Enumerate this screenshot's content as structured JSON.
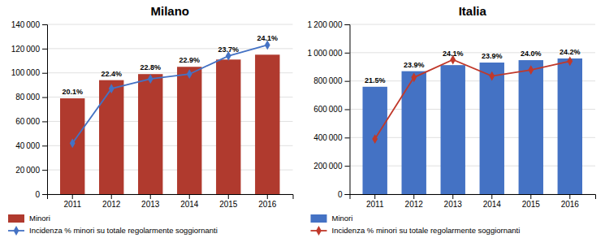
{
  "chart_data": [
    {
      "type": "bar",
      "title": "Milano",
      "categories": [
        "2011",
        "2012",
        "2013",
        "2014",
        "2015",
        "2016"
      ],
      "series": [
        {
          "name": "Minori",
          "type": "bar",
          "color": "#B03A2E",
          "values": [
            79000,
            94000,
            99000,
            105000,
            111000,
            115000
          ]
        },
        {
          "name": "Incidenza % minori su totale regolarmente soggiornanti",
          "type": "line",
          "color": "#4472C4",
          "marker": "diamond",
          "values": [
            42000,
            87000,
            95000,
            99000,
            114000,
            123000
          ]
        }
      ],
      "annotations": [
        "20.1%",
        "22.4%",
        "22.8%",
        "22.9%",
        "23.7%",
        "24.1%"
      ],
      "ylim": [
        0,
        140000
      ],
      "yticks": [
        0,
        {
          "value": 20000,
          "label": "20 000"
        },
        {
          "value": 40000,
          "label": "40 000"
        },
        {
          "value": 60000,
          "label": "60 000"
        },
        {
          "value": 80000,
          "label": "80 000"
        },
        {
          "value": 100000,
          "label": "100 000"
        },
        {
          "value": 120000,
          "label": "120 000"
        },
        {
          "value": 140000,
          "label": "140 000"
        }
      ],
      "grid": true,
      "legend": "bottom"
    },
    {
      "type": "bar",
      "title": "Italia",
      "categories": [
        "2011",
        "2012",
        "2013",
        "2014",
        "2015",
        "2016"
      ],
      "series": [
        {
          "name": "Minori",
          "type": "bar",
          "color": "#4472C4",
          "values": [
            759000,
            869000,
            912000,
            930000,
            947000,
            959000
          ]
        },
        {
          "name": "Incidenza % minori su totale regolarmente soggiornanti",
          "type": "line",
          "color": "#C0392B",
          "marker": "diamond",
          "values": [
            390000,
            825000,
            950000,
            835000,
            878000,
            940000
          ]
        }
      ],
      "annotations": [
        "21.5%",
        "23.9%",
        "24.1%",
        "23.9%",
        "24.0%",
        "24.2%"
      ],
      "ylim": [
        0,
        1200000
      ],
      "yticks": [
        0,
        {
          "value": 200000,
          "label": "200 000"
        },
        {
          "value": 400000,
          "label": "400 000"
        },
        {
          "value": 600000,
          "label": "600 000"
        },
        {
          "value": 800000,
          "label": "800 000"
        },
        {
          "value": 1000000,
          "label": "1 000 000"
        },
        {
          "value": 1200000,
          "label": "1 200 000"
        }
      ],
      "grid": true,
      "legend": "bottom"
    }
  ]
}
